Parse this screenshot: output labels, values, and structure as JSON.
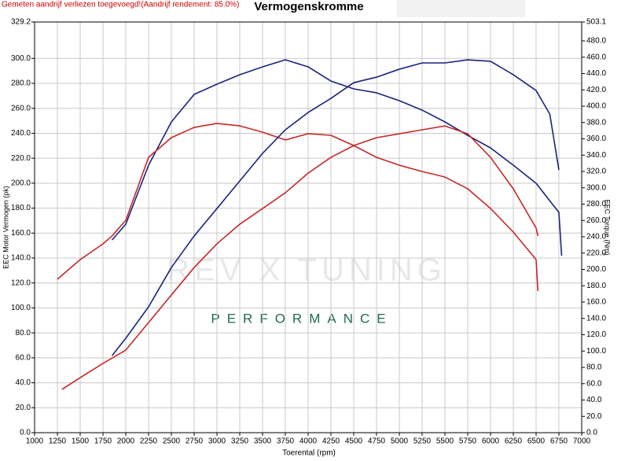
{
  "chart_data": {
    "type": "line",
    "title": "Vermogenskromme",
    "subtitle": "Gemeten aandrijf verliezen toegevoegd!(Aandrijf rendement: 85.0%)",
    "xlabel": "Toerental (rpm)",
    "ylabel": "EEC Motor Vermogen (pk)",
    "y2label": "EEC Torque (Nm)",
    "watermark": [
      "REV X TUNING",
      "PERFORMANCE"
    ],
    "grid": true,
    "xlim": [
      1000,
      7000
    ],
    "xticks": [
      1000,
      1250,
      1500,
      1750,
      2000,
      2250,
      2500,
      2750,
      3000,
      3250,
      3500,
      3750,
      4000,
      4250,
      4500,
      4750,
      5000,
      5250,
      5500,
      5750,
      6000,
      6250,
      6500,
      6750,
      7000
    ],
    "ylim": [
      0,
      329.2
    ],
    "yticks": [
      {
        "value": 0,
        "label": "0.0"
      },
      {
        "value": 20,
        "label": "20.0"
      },
      {
        "value": 40,
        "label": "40.0"
      },
      {
        "value": 60,
        "label": "60.0"
      },
      {
        "value": 80,
        "label": "80.0"
      },
      {
        "value": 100,
        "label": "100.0"
      },
      {
        "value": 120,
        "label": "120.0"
      },
      {
        "value": 140,
        "label": "140.0"
      },
      {
        "value": 160,
        "label": "160.0"
      },
      {
        "value": 180,
        "label": "180.0"
      },
      {
        "value": 200,
        "label": "200.0"
      },
      {
        "value": 220,
        "label": "220.0"
      },
      {
        "value": 240,
        "label": "240.0"
      },
      {
        "value": 260,
        "label": "260.0"
      },
      {
        "value": 280,
        "label": "280.0"
      },
      {
        "value": 300,
        "label": "300.0"
      },
      329.2
    ],
    "y2lim": [
      0,
      503.1
    ],
    "y2ticks": [
      {
        "value": 0,
        "label": "0.0"
      },
      {
        "value": 20,
        "label": "20.0"
      },
      {
        "value": 40,
        "label": "40.0"
      },
      {
        "value": 60,
        "label": "60.0"
      },
      {
        "value": 80,
        "label": "80.0"
      },
      {
        "value": 100,
        "label": "100.0"
      },
      {
        "value": 120,
        "label": "120.0"
      },
      {
        "value": 140,
        "label": "140.0"
      },
      {
        "value": 160,
        "label": "160.0"
      },
      {
        "value": 180,
        "label": "180.0"
      },
      {
        "value": 200,
        "label": "200.0"
      },
      {
        "value": 220,
        "label": "220.0"
      },
      {
        "value": 240,
        "label": "240.0"
      },
      {
        "value": 260,
        "label": "260.0"
      },
      {
        "value": 280,
        "label": "280.0"
      },
      {
        "value": 300,
        "label": "300.0"
      },
      {
        "value": 320,
        "label": "320.0"
      },
      {
        "value": 340,
        "label": "340.0"
      },
      {
        "value": 360,
        "label": "360.0"
      },
      {
        "value": 380,
        "label": "380.0"
      },
      {
        "value": 400,
        "label": "400.0"
      },
      {
        "value": 420,
        "label": "420.0"
      },
      {
        "value": 440,
        "label": "440.0"
      },
      {
        "value": 460,
        "label": "460.0"
      },
      {
        "value": 480,
        "label": "480.0"
      },
      503.1
    ],
    "series": [
      {
        "color": "#1a237e",
        "axis": "y2",
        "x": [
          1850,
          2000,
          2250,
          2500,
          2750,
          3000,
          3250,
          3500,
          3750,
          4000,
          4250,
          4500,
          4750,
          5000,
          5250,
          5500,
          5750,
          6000,
          6250,
          6500,
          6750,
          6780
        ],
        "values": [
          236.1,
          255.4,
          327.7,
          380.7,
          414.4,
          427.0,
          438.5,
          448.2,
          456.8,
          448.2,
          430.8,
          421.2,
          416.4,
          406.7,
          395.2,
          380.7,
          364.3,
          348.9,
          327.7,
          305.5,
          269.9,
          216.9
        ]
      },
      {
        "color": "#c62828",
        "axis": "y2",
        "x": [
          1250,
          1500,
          1750,
          1850,
          2000,
          2250,
          2500,
          2750,
          3000,
          3250,
          3500,
          3750,
          4000,
          4250,
          4500,
          4750,
          5000,
          5250,
          5500,
          5750,
          6000,
          6250,
          6500,
          6520
        ],
        "values": [
          187.9,
          212.0,
          231.3,
          241.0,
          260.2,
          337.3,
          361.4,
          374.0,
          378.8,
          375.9,
          368.2,
          358.6,
          366.3,
          364.3,
          351.8,
          337.3,
          327.7,
          320.0,
          313.2,
          298.8,
          274.7,
          245.8,
          212.0,
          173.5
        ]
      },
      {
        "color": "#1a237e",
        "axis": "y",
        "x": [
          1850,
          2000,
          2250,
          2500,
          2750,
          3000,
          3250,
          3500,
          3750,
          4000,
          4250,
          4500,
          4750,
          5000,
          5250,
          5500,
          5750,
          6000,
          6250,
          6500,
          6650,
          6750
        ],
        "values": [
          61.8,
          75.7,
          100.9,
          132.4,
          157.7,
          179.7,
          201.8,
          223.9,
          242.8,
          256.7,
          268.0,
          280.6,
          285.0,
          291.4,
          296.4,
          296.4,
          298.9,
          297.7,
          287.0,
          274.3,
          255.4,
          210.6
        ]
      },
      {
        "color": "#c62828",
        "axis": "y",
        "x": [
          1300,
          1500,
          1750,
          2000,
          2250,
          2500,
          2750,
          3000,
          3250,
          3500,
          3750,
          4000,
          4250,
          4500,
          4750,
          5000,
          5250,
          5500,
          5750,
          6000,
          6250,
          6500,
          6520
        ],
        "values": [
          34.7,
          44.1,
          55.5,
          66.2,
          88.3,
          110.4,
          132.4,
          151.4,
          167.1,
          179.7,
          192.3,
          208.1,
          220.7,
          230.2,
          236.5,
          239.6,
          242.8,
          245.9,
          239.6,
          220.7,
          195.5,
          164.0,
          157.7
        ]
      }
    ]
  }
}
